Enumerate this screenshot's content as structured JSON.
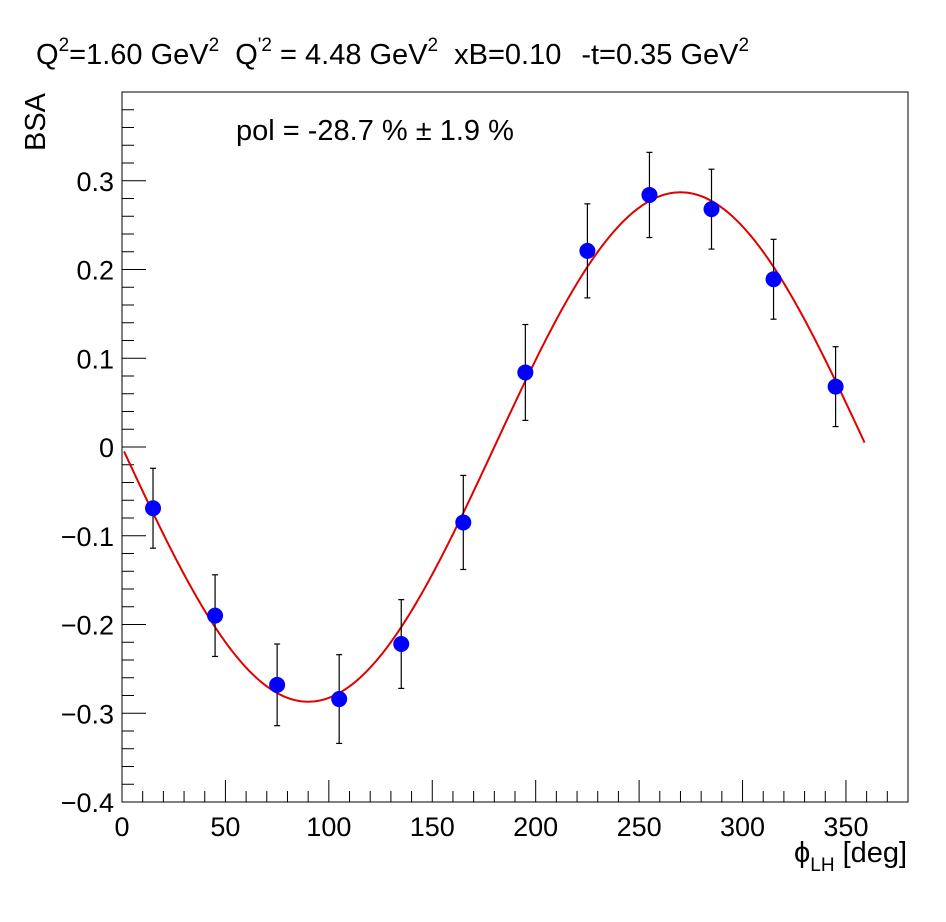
{
  "chart_data": {
    "type": "scatter",
    "title_parts": {
      "q2_base": "Q",
      "q2_sup": "2",
      "q2_value": "=1.60 GeV",
      "q2_unit_sup": "2",
      "qp2_base": "Q",
      "qp2_sup": "'2",
      "qp2_value": " = 4.48 GeV",
      "qp2_unit_sup": "2",
      "xb": "xB=0.10",
      "t_value": "-t=0.35 GeV",
      "t_unit_sup": "2"
    },
    "annotation": "pol = -28.7 % ± 1.9 %",
    "ylabel": "BSA",
    "xlabel_parts": {
      "symbol": "ϕ",
      "subscript": "LH",
      "unit": " [deg]"
    },
    "xlim": [
      0,
      380
    ],
    "ylim": [
      -0.4,
      0.4
    ],
    "x_ticks": [
      0,
      50,
      100,
      150,
      200,
      250,
      300,
      350
    ],
    "x_tick_labels": [
      "0",
      "50",
      "100",
      "150",
      "200",
      "250",
      "300",
      "350"
    ],
    "y_ticks": [
      -0.4,
      -0.3,
      -0.2,
      -0.1,
      0,
      0.1,
      0.2,
      0.3
    ],
    "y_tick_labels": [
      "−0.4",
      "−0.3",
      "−0.2",
      "−0.1",
      "0",
      "0.1",
      "0.2",
      "0.3"
    ],
    "points": {
      "x": [
        15,
        45,
        75,
        105,
        135,
        165,
        195,
        225,
        255,
        285,
        315,
        345
      ],
      "y": [
        -0.069,
        -0.19,
        -0.268,
        -0.284,
        -0.222,
        -0.085,
        0.084,
        0.221,
        0.284,
        0.268,
        0.189,
        0.068
      ],
      "yerr": [
        0.045,
        0.046,
        0.046,
        0.05,
        0.05,
        0.053,
        0.054,
        0.053,
        0.048,
        0.045,
        0.045,
        0.045
      ]
    },
    "fit": {
      "function": "-A*sin(phi)",
      "amplitude": 0.287,
      "x_range": [
        1,
        359
      ]
    },
    "grid": false,
    "colors": {
      "title": "#0000ff",
      "points": "#0000ff",
      "fit": "#e00000",
      "axis": "#000000"
    }
  }
}
